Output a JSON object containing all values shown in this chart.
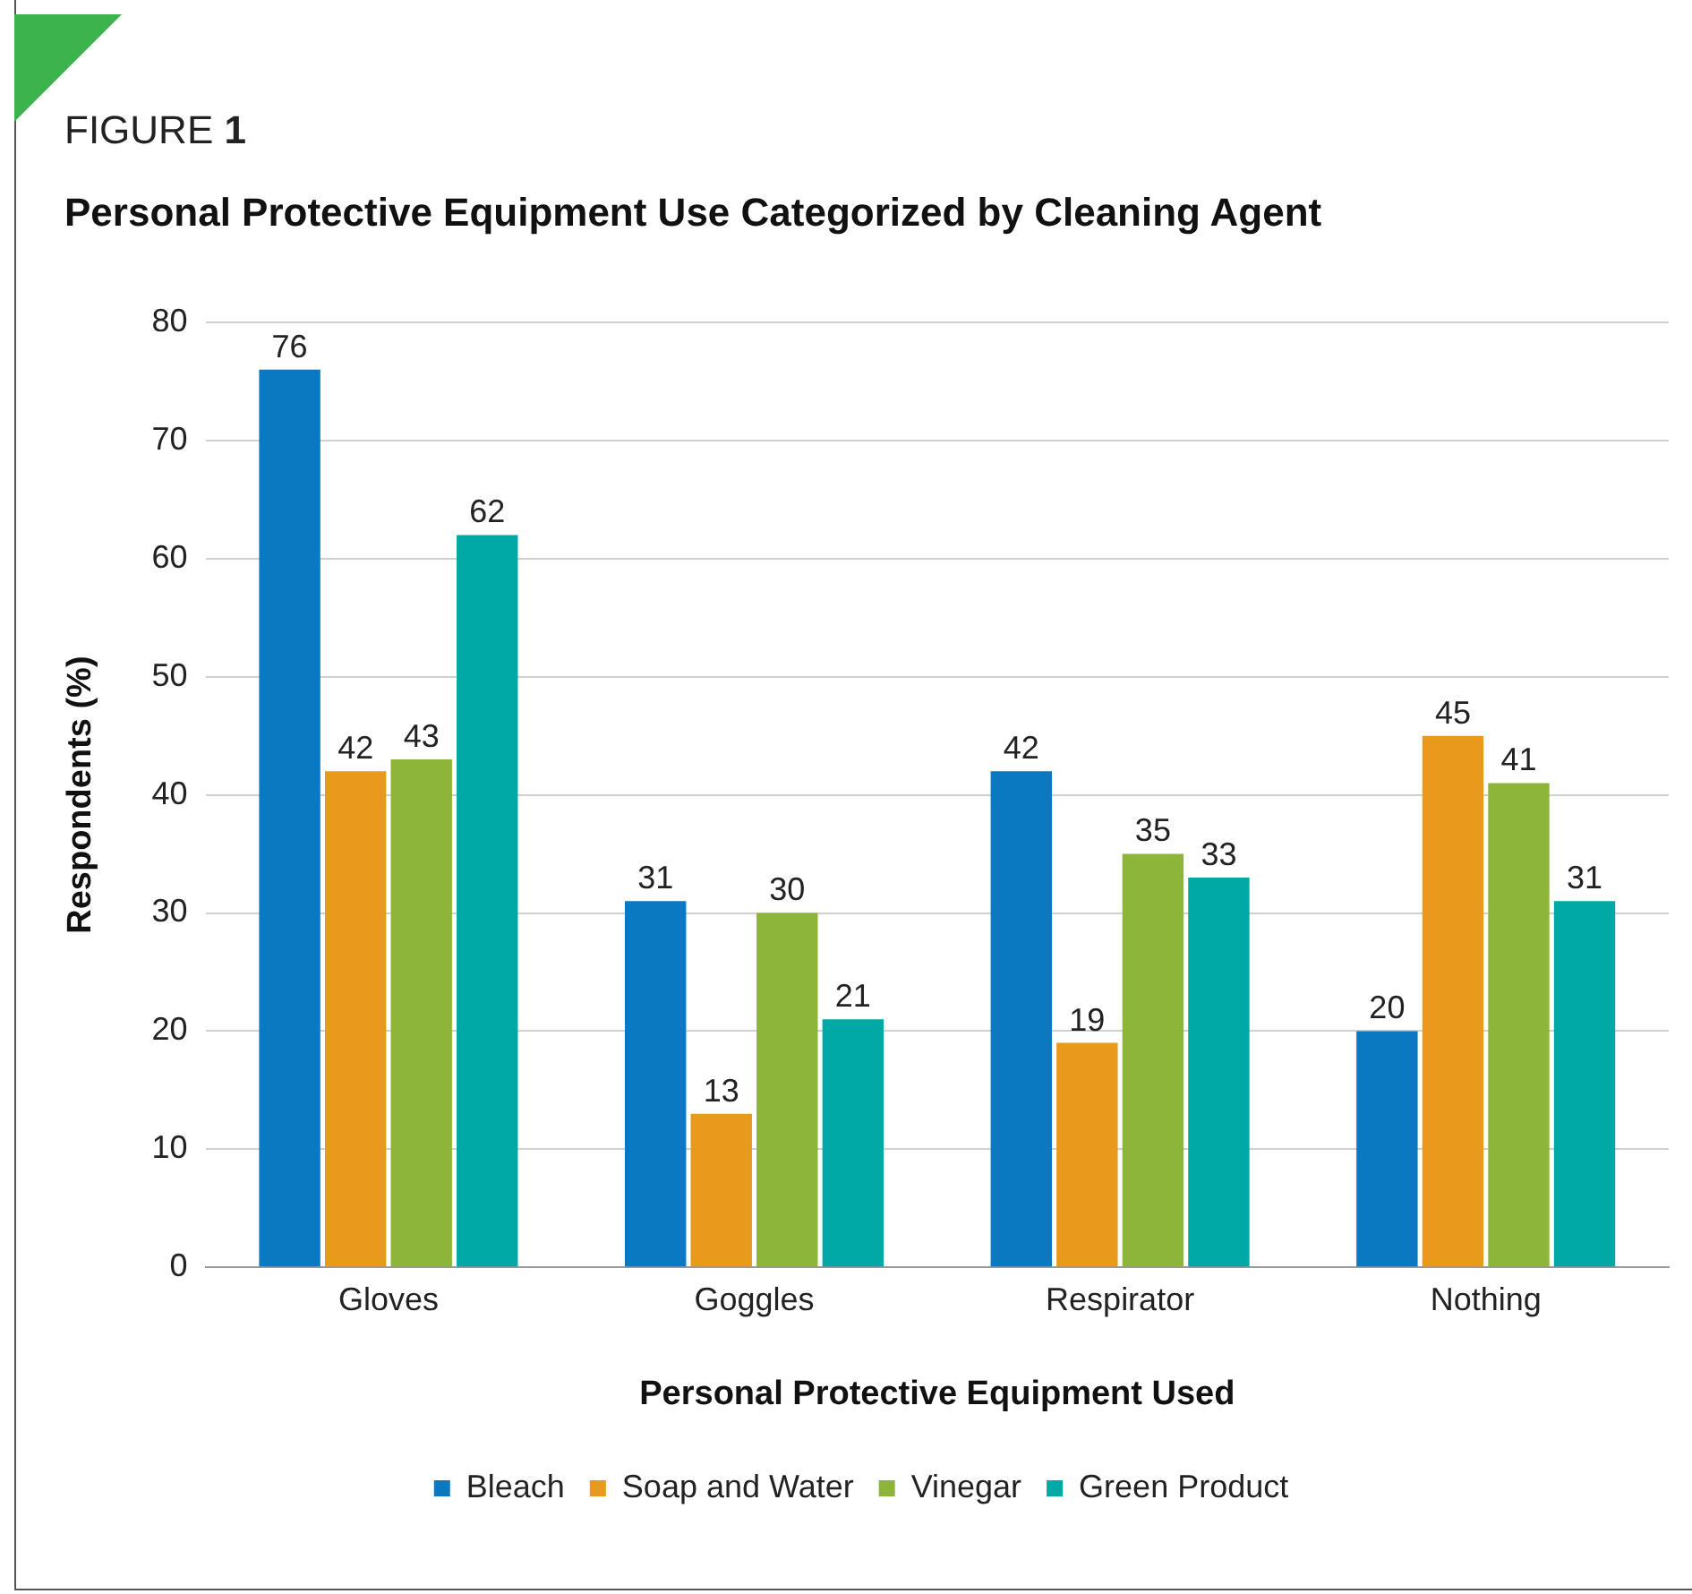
{
  "chart_data": {
    "type": "bar",
    "title": "Personal Protective Equipment Use Categorized by Cleaning Agent",
    "annotations": [
      "FIGURE 1"
    ],
    "xlabel": "Personal Protective Equipment Used",
    "ylabel": "Respondents (%)",
    "categories": [
      "Gloves",
      "Goggles",
      "Respirator",
      "Nothing"
    ],
    "series": [
      {
        "name": "Bleach",
        "color": "#0a79c2",
        "values": [
          76,
          31,
          42,
          20
        ]
      },
      {
        "name": "Soap and Water",
        "color": "#e89a1c",
        "values": [
          42,
          13,
          19,
          45
        ]
      },
      {
        "name": "Vinegar",
        "color": "#8db53a",
        "values": [
          43,
          30,
          35,
          41
        ]
      },
      {
        "name": "Green Product",
        "color": "#00a9a5",
        "values": [
          62,
          21,
          33,
          31
        ]
      }
    ],
    "ylim": [
      0,
      80
    ],
    "yticks": [
      0,
      10,
      20,
      30,
      40,
      50,
      60,
      70,
      80
    ],
    "grid": "y",
    "legend": "bottom",
    "data_labels": true
  }
}
